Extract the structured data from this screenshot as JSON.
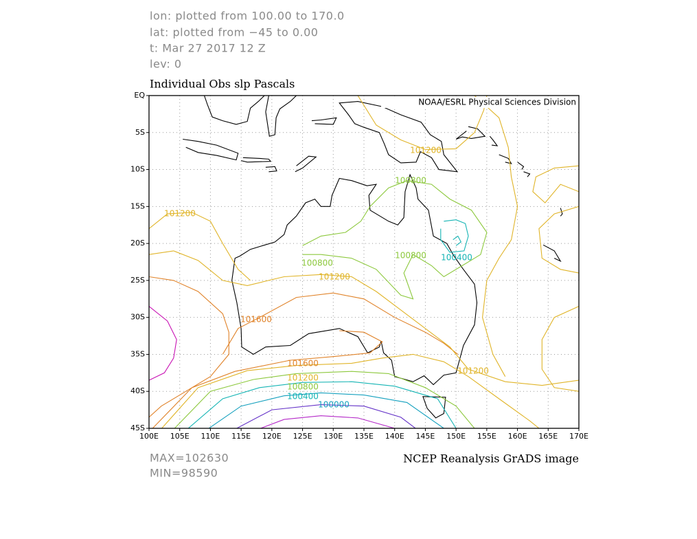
{
  "header": {
    "lines": [
      "lon: plotted from 100.00 to 170.0",
      "lat: plotted from −45 to 0.00",
      "t: Mar 27 2017 12 Z",
      "lev: 0"
    ]
  },
  "map": {
    "title": "Individual Obs slp Pascals",
    "credit": "NOAA/ESRL Physical Sciences Division",
    "lat_labels": [
      "EQ",
      "5S",
      "10S",
      "15S",
      "20S",
      "25S",
      "30S",
      "35S",
      "40S",
      "45S"
    ],
    "lon_labels": [
      "100E",
      "105E",
      "110E",
      "115E",
      "120E",
      "125E",
      "130E",
      "135E",
      "140E",
      "145E",
      "150E",
      "155E",
      "160E",
      "165E",
      "170E"
    ],
    "contour_labels": [
      101200,
      100800,
      101200,
      100400,
      100800,
      100800,
      101200,
      101600,
      101600,
      101200,
      101200,
      100800,
      100400,
      100000
    ]
  },
  "footer": {
    "max": "MAX=102630",
    "min": "MIN=98590",
    "source": "NCEP Reanalysis GrADS image"
  }
}
